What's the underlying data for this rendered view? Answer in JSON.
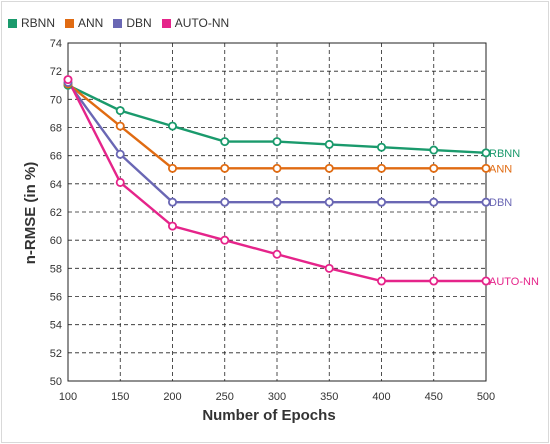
{
  "chart_data": {
    "type": "line",
    "title": "",
    "xlabel": "Number of Epochs",
    "ylabel": "n-RMSE (in %)",
    "x": [
      100,
      150,
      200,
      250,
      300,
      350,
      400,
      450,
      500
    ],
    "xlim": [
      100,
      500
    ],
    "ylim": [
      50,
      74
    ],
    "yticks": [
      50,
      52,
      54,
      56,
      58,
      60,
      62,
      64,
      66,
      68,
      70,
      72,
      74
    ],
    "grid": true,
    "legend_position": "top-left",
    "series": [
      {
        "name": "RBNN",
        "color": "#1a9a6c",
        "values": [
          71.0,
          69.2,
          68.1,
          67.0,
          67.0,
          66.8,
          66.6,
          66.4,
          66.2
        ]
      },
      {
        "name": "ANN",
        "color": "#e06b12",
        "values": [
          71.1,
          68.1,
          65.1,
          65.1,
          65.1,
          65.1,
          65.1,
          65.1,
          65.1
        ]
      },
      {
        "name": "DBN",
        "color": "#6a67b4",
        "values": [
          71.2,
          66.1,
          62.7,
          62.7,
          62.7,
          62.7,
          62.7,
          62.7,
          62.7
        ]
      },
      {
        "name": "AUTO-NN",
        "color": "#e5248a",
        "values": [
          71.4,
          64.1,
          61.0,
          60.0,
          59.0,
          58.0,
          57.1,
          57.1,
          57.1
        ]
      }
    ]
  }
}
